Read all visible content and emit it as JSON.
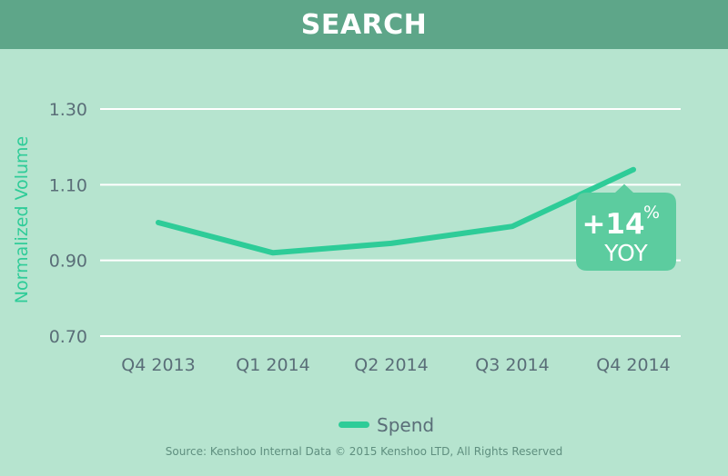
{
  "header": {
    "title": "SEARCH"
  },
  "chart_data": {
    "type": "line",
    "categories": [
      "Q4 2013",
      "Q1 2014",
      "Q2 2014",
      "Q3 2014",
      "Q4 2014"
    ],
    "series": [
      {
        "name": "Spend",
        "values": [
          1.0,
          0.92,
          0.945,
          0.99,
          1.14
        ]
      }
    ],
    "ylabel": "Normalized Volume",
    "xlabel": "",
    "ylim": [
      0.7,
      1.3
    ],
    "yticks": [
      "0.70",
      "0.90",
      "1.10",
      "1.30"
    ],
    "grid": true,
    "legend_position": "bottom",
    "colors": {
      "line": "#2ecc98",
      "grid": "#ffffff",
      "tick_text": "#5a6e78",
      "ylabel": "#2ecc98"
    },
    "annotation": {
      "value": "+14",
      "unit": "%",
      "label": "YOY",
      "color": "#5ccc9f"
    }
  },
  "footer": {
    "source": "Source: Kenshoo Internal Data © 2015 Kenshoo LTD, All Rights Reserved"
  }
}
